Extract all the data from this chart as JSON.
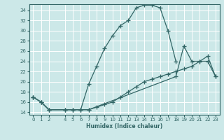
{
  "xlabel": "Humidex (Indice chaleur)",
  "bg_color": "#cce8e8",
  "line_color": "#336666",
  "grid_color": "#ffffff",
  "xlim": [
    -0.5,
    23.5
  ],
  "ylim": [
    13.5,
    35.2
  ],
  "xticks": [
    0,
    1,
    2,
    4,
    5,
    6,
    7,
    8,
    9,
    10,
    11,
    12,
    13,
    14,
    15,
    16,
    17,
    18,
    19,
    20,
    21,
    22,
    23
  ],
  "yticks": [
    14,
    16,
    18,
    20,
    22,
    24,
    26,
    28,
    30,
    32,
    34
  ],
  "curve1_x": [
    0,
    1,
    2,
    4,
    5,
    6,
    7,
    8,
    9,
    10,
    11,
    12,
    13,
    14,
    15,
    16,
    17,
    18
  ],
  "curve1_y": [
    17,
    16,
    14.5,
    14.5,
    14.5,
    14.5,
    19.5,
    23,
    26.5,
    29,
    31,
    32,
    34.5,
    35,
    35,
    34.5,
    30,
    24
  ],
  "curve2_x": [
    0,
    1,
    2,
    4,
    5,
    6,
    7,
    18,
    19,
    20,
    21,
    22,
    23
  ],
  "curve2_y": [
    17,
    16,
    14.5,
    14.5,
    14.5,
    14.5,
    14.5,
    21,
    27,
    24,
    24,
    24,
    21
  ],
  "curve3_x": [
    0,
    1,
    2,
    4,
    5,
    6,
    7,
    8,
    9,
    10,
    11,
    12,
    13,
    14,
    15,
    16,
    17,
    18,
    19,
    20,
    21,
    22,
    23
  ],
  "curve3_y": [
    17,
    16,
    14.5,
    14.5,
    14.5,
    14.5,
    14.5,
    15,
    15.5,
    16,
    17,
    18,
    19,
    20,
    20.5,
    21,
    21.5,
    22,
    22.5,
    23,
    24,
    25,
    21
  ]
}
